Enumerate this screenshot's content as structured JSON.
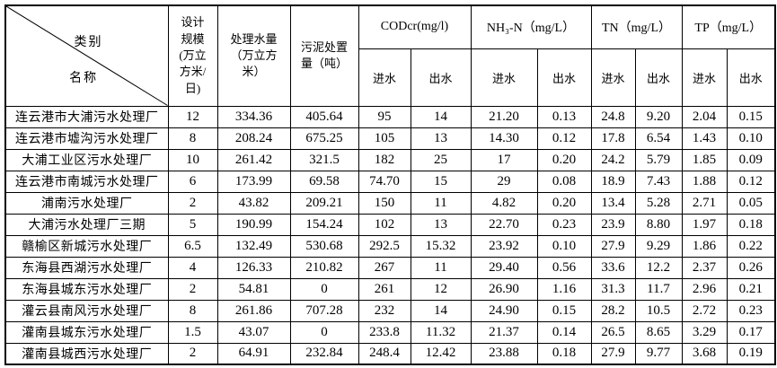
{
  "page": {
    "background": "#ffffff",
    "border_color": "#000000",
    "text_color": "#000000"
  },
  "table": {
    "corner": {
      "category_label": "类别",
      "name_label": "名称"
    },
    "col_headers": {
      "design_scale": "设计\n规模\n(万立\n方米/\n日)",
      "treated_volume": "处理水量\n（万立方\n米）",
      "sludge": "污泥处置\n量（吨）"
    },
    "group_headers": {
      "cod": "CODcr(mg/l)",
      "nh3n": "NH₃-N（mg/L）",
      "tn": "TN（mg/L）",
      "tp": "TP（mg/L）"
    },
    "sub_headers": {
      "influent": "进水",
      "effluent": "出水"
    },
    "rows": [
      [
        "连云港市大浦污水处理厂",
        "12",
        "334.36",
        "405.64",
        "95",
        "14",
        "21.20",
        "0.13",
        "24.8",
        "9.20",
        "2.04",
        "0.15"
      ],
      [
        "连云港市墟沟污水处理厂",
        "8",
        "208.24",
        "675.25",
        "105",
        "13",
        "14.30",
        "0.12",
        "17.8",
        "6.54",
        "1.43",
        "0.10"
      ],
      [
        "大浦工业区污水处理厂",
        "10",
        "261.42",
        "321.5",
        "182",
        "25",
        "17",
        "0.20",
        "24.2",
        "5.79",
        "1.85",
        "0.09"
      ],
      [
        "连云港市南城污水处理厂",
        "6",
        "173.99",
        "69.58",
        "74.70",
        "15",
        "29",
        "0.08",
        "18.9",
        "7.43",
        "1.88",
        "0.12"
      ],
      [
        "浦南污水处理厂",
        "2",
        "43.82",
        "209.21",
        "150",
        "11",
        "4.82",
        "0.20",
        "13.4",
        "5.28",
        "2.71",
        "0.05"
      ],
      [
        "大浦污水处理厂三期",
        "5",
        "190.99",
        "154.24",
        "102",
        "13",
        "22.70",
        "0.23",
        "23.9",
        "8.80",
        "1.97",
        "0.18"
      ],
      [
        "赣榆区新城污水处理厂",
        "6.5",
        "132.49",
        "530.68",
        "292.5",
        "15.32",
        "23.92",
        "0.10",
        "27.9",
        "9.29",
        "1.86",
        "0.22"
      ],
      [
        "东海县西湖污水处理厂",
        "4",
        "126.33",
        "210.82",
        "267",
        "11",
        "29.40",
        "0.56",
        "33.6",
        "12.2",
        "2.37",
        "0.26"
      ],
      [
        "东海县城东污水处理厂",
        "2",
        "54.81",
        "0",
        "261",
        "12",
        "26.90",
        "1.16",
        "31.3",
        "11.7",
        "2.96",
        "0.21"
      ],
      [
        "灌云县南风污水处理厂",
        "8",
        "261.86",
        "707.28",
        "232",
        "14",
        "24.90",
        "0.15",
        "28.2",
        "10.5",
        "2.72",
        "0.23"
      ],
      [
        "灌南县城东污水处理厂",
        "1.5",
        "43.07",
        "0",
        "233.8",
        "11.32",
        "21.37",
        "0.14",
        "26.5",
        "8.65",
        "3.29",
        "0.17"
      ],
      [
        "灌南县城西污水处理厂",
        "2",
        "64.91",
        "232.84",
        "248.4",
        "12.42",
        "23.88",
        "0.18",
        "27.9",
        "9.77",
        "3.68",
        "0.19"
      ]
    ]
  }
}
